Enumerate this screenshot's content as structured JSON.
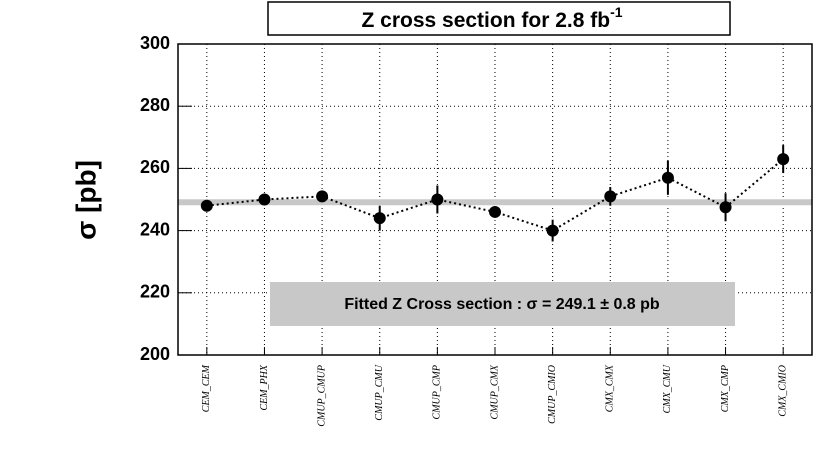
{
  "chart_data": {
    "type": "errorbar",
    "title": "Z cross section for 2.8 fb",
    "title_superscript": "-1",
    "y_label": "σ [pb]",
    "annotation": "Fitted Z Cross section : σ = 249.1 ± 0.8 pb",
    "fit_value": 249.1,
    "fit_color": "#c8c8c8",
    "categories": [
      "CEM_CEM",
      "CEM_PHX",
      "CMUP_CMUP",
      "CMUP_CMU",
      "CMUP_CMP",
      "CMUP_CMX",
      "CMUP_CMIO",
      "CMX_CMX",
      "CMX_CMU",
      "CMX_CMP",
      "CMX_CMIO"
    ],
    "values": [
      248,
      250,
      251,
      244,
      250,
      246,
      240,
      251,
      257,
      247.5,
      263
    ],
    "errors": [
      1,
      1,
      1.5,
      4,
      4.5,
      1.5,
      3.5,
      3,
      5.5,
      4.5,
      4.5
    ],
    "color": "#000000",
    "ylim": [
      200,
      300
    ],
    "yticks": [
      200,
      220,
      240,
      260,
      280,
      300
    ],
    "grid": true
  }
}
